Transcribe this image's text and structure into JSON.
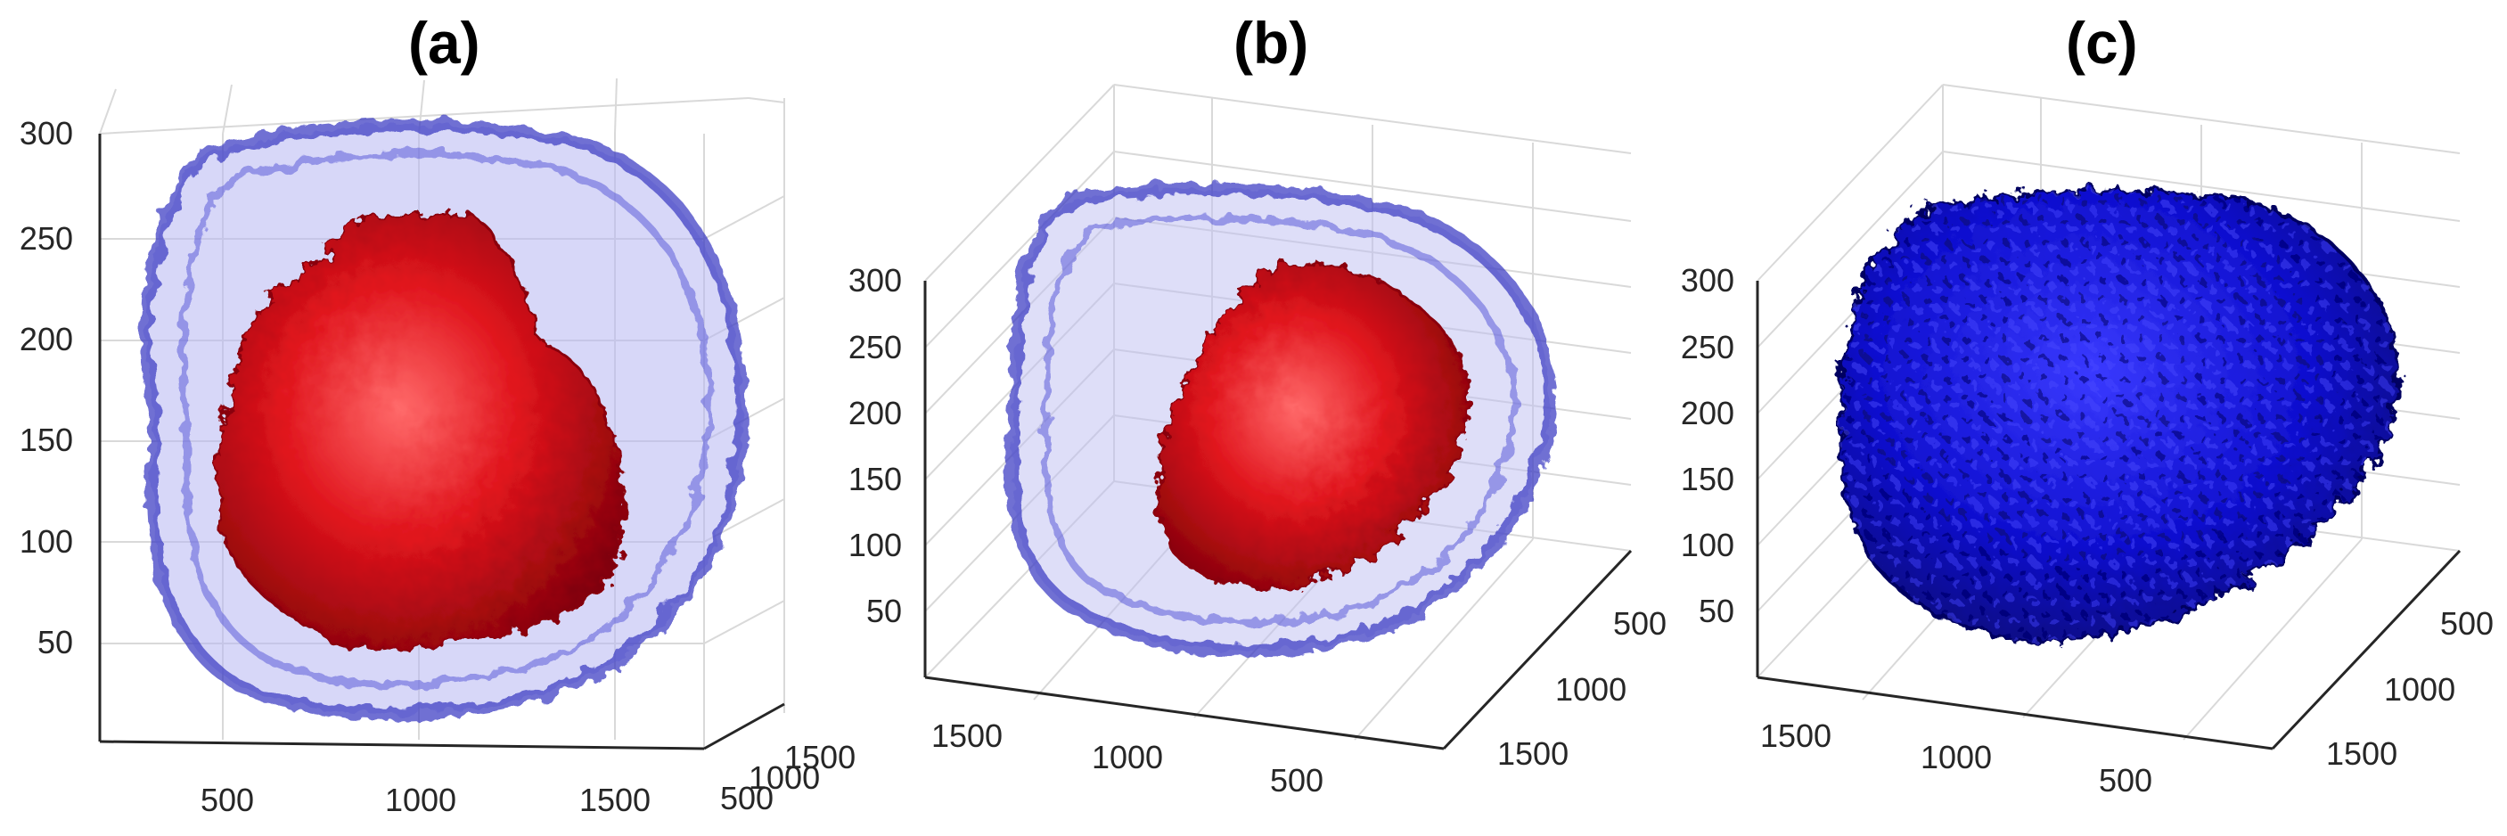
{
  "panels": [
    {
      "label": "(a)",
      "z_ticks": [
        "300",
        "250",
        "200",
        "150",
        "100",
        "50"
      ],
      "x_ticks": [
        "500",
        "1000",
        "1500"
      ],
      "y_ticks": [
        "500",
        "1000",
        "1500"
      ],
      "colors": {
        "outer_shell": "#3b3bd0",
        "inner_body": "#d4141c"
      }
    },
    {
      "label": "(b)",
      "z_ticks": [
        "300",
        "250",
        "200",
        "150",
        "100",
        "50"
      ],
      "x_ticks": [
        "1500",
        "1000",
        "500"
      ],
      "y_ticks": [
        "500",
        "1000",
        "1500"
      ],
      "colors": {
        "outer_shell": "#3b3bd0",
        "inner_body": "#d4141c"
      }
    },
    {
      "label": "(c)",
      "z_ticks": [
        "300",
        "250",
        "200",
        "150",
        "100",
        "50"
      ],
      "x_ticks": [
        "1500",
        "1000",
        "500"
      ],
      "y_ticks": [
        "500",
        "1000",
        "1500"
      ],
      "colors": {
        "solid_body": "#1414c8"
      }
    }
  ]
}
